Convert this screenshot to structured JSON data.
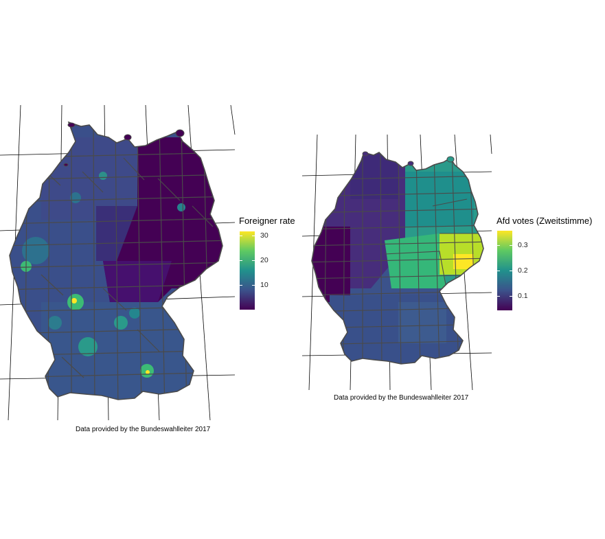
{
  "maps": [
    {
      "variable": "foreigner_rate",
      "legend": {
        "title": "Foreigner rate",
        "ticks": [
          "30",
          "20",
          "10"
        ],
        "scale": "viridis"
      },
      "caption": "Data provided by the Bundeswahlleiter 2017",
      "region_fill_note": "east low (dark purple), west medium (blue), cities high (green/yellow)"
    },
    {
      "variable": "afd_votes_zweitstimme",
      "legend": {
        "title": "Afd votes (Zweitstimme)",
        "ticks": [
          "0.3",
          "0.2",
          "0.1"
        ],
        "scale": "viridis"
      },
      "caption": "Data provided by the Bundeswahlleiter 2017",
      "region_fill_note": "east high (green/teal), Saxony highest (yellow), west low (dark purple/blue)"
    }
  ],
  "colors": {
    "viridis": [
      "#440154",
      "#3b528b",
      "#21918c",
      "#5ec962",
      "#fde725"
    ],
    "border": "#4a4a4a"
  }
}
